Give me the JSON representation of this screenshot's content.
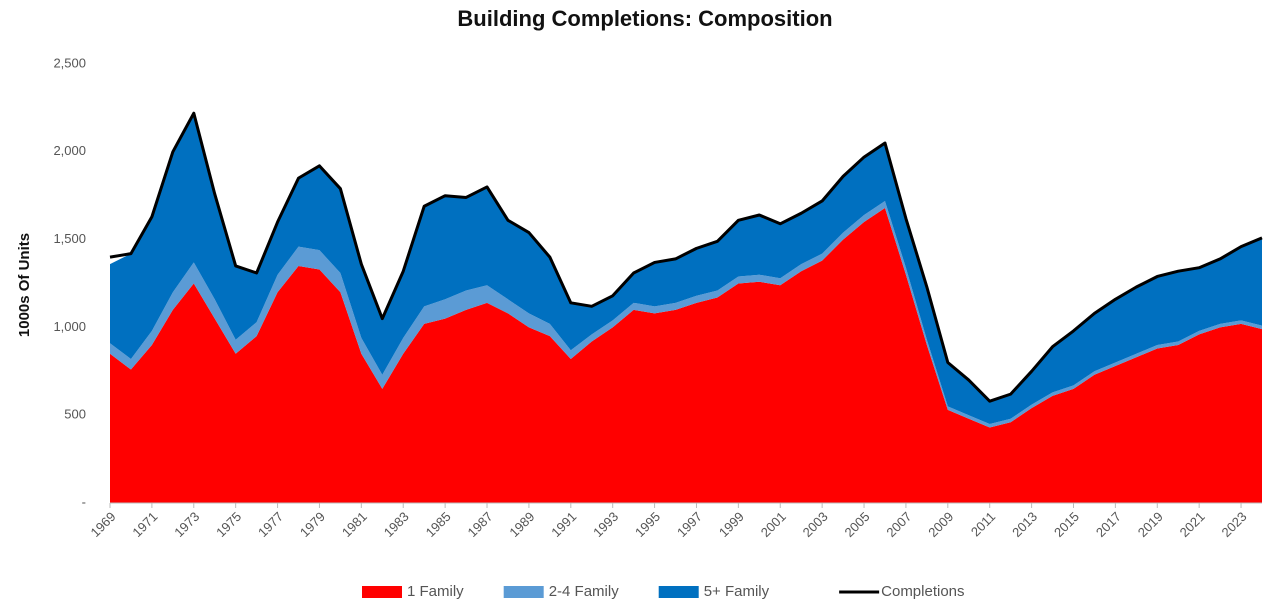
{
  "chart_data": {
    "type": "stacked_area",
    "title": "Building Completions: Composition",
    "ylabel": "1000s Of Units",
    "x": [
      1969,
      1970,
      1971,
      1972,
      1973,
      1974,
      1975,
      1976,
      1977,
      1978,
      1979,
      1980,
      1981,
      1982,
      1983,
      1984,
      1985,
      1986,
      1987,
      1988,
      1989,
      1990,
      1991,
      1992,
      1993,
      1994,
      1995,
      1996,
      1997,
      1998,
      1999,
      2000,
      2001,
      2002,
      2003,
      2004,
      2005,
      2006,
      2007,
      2008,
      2009,
      2010,
      2011,
      2012,
      2013,
      2014,
      2015,
      2016,
      2017,
      2018,
      2019,
      2020,
      2021,
      2022,
      2023,
      2024
    ],
    "series": [
      {
        "name": "1 Family",
        "color": "#ff0000",
        "values": [
          850,
          760,
          900,
          1100,
          1250,
          1050,
          850,
          950,
          1200,
          1350,
          1330,
          1200,
          850,
          650,
          850,
          1020,
          1050,
          1100,
          1140,
          1080,
          1000,
          950,
          820,
          920,
          1000,
          1100,
          1080,
          1100,
          1140,
          1170,
          1250,
          1260,
          1240,
          1320,
          1380,
          1500,
          1600,
          1680,
          1300,
          900,
          530,
          480,
          430,
          460,
          540,
          610,
          650,
          730,
          780,
          830,
          880,
          900,
          960,
          1000,
          1020,
          990
        ]
      },
      {
        "name": "2-4 Family",
        "color": "#5b9bd5",
        "values": [
          60,
          60,
          80,
          100,
          120,
          110,
          80,
          80,
          100,
          110,
          110,
          110,
          90,
          80,
          90,
          100,
          110,
          110,
          100,
          80,
          80,
          70,
          50,
          40,
          40,
          40,
          40,
          40,
          40,
          40,
          40,
          40,
          40,
          40,
          40,
          40,
          40,
          40,
          40,
          30,
          20,
          20,
          20,
          20,
          20,
          20,
          20,
          20,
          20,
          20,
          20,
          20,
          20,
          20,
          20,
          20
        ]
      },
      {
        "name": "5+ Family",
        "color": "#0070c0",
        "values": [
          450,
          600,
          650,
          800,
          850,
          600,
          420,
          280,
          300,
          390,
          480,
          480,
          420,
          320,
          380,
          570,
          590,
          530,
          560,
          450,
          460,
          380,
          270,
          160,
          140,
          170,
          250,
          250,
          270,
          280,
          320,
          340,
          310,
          290,
          300,
          320,
          330,
          330,
          280,
          300,
          250,
          200,
          130,
          140,
          190,
          260,
          310,
          330,
          360,
          380,
          390,
          400,
          360,
          370,
          420,
          500
        ]
      },
      {
        "name": "Completions",
        "color": "#000000",
        "kind": "line",
        "values": [
          1400,
          1420,
          1630,
          2000,
          2220,
          1760,
          1350,
          1310,
          1600,
          1850,
          1920,
          1790,
          1360,
          1050,
          1320,
          1690,
          1750,
          1740,
          1800,
          1610,
          1540,
          1400,
          1140,
          1120,
          1180,
          1310,
          1370,
          1390,
          1450,
          1490,
          1610,
          1640,
          1590,
          1650,
          1720,
          1860,
          1970,
          2050,
          1620,
          1230,
          800,
          700,
          580,
          620,
          750,
          890,
          980,
          1080,
          1160,
          1230,
          1290,
          1320,
          1340,
          1390,
          1460,
          1510
        ]
      }
    ],
    "xlim": [
      1969,
      2024
    ],
    "xticks": [
      1969,
      1971,
      1973,
      1975,
      1977,
      1979,
      1981,
      1983,
      1985,
      1987,
      1989,
      1991,
      1993,
      1995,
      1997,
      1999,
      2001,
      2003,
      2005,
      2007,
      2009,
      2011,
      2013,
      2015,
      2017,
      2019,
      2021,
      2023
    ],
    "ylim": [
      0,
      2500
    ],
    "yticks": [
      {
        "value": 0,
        "label": "-"
      },
      500,
      {
        "value": 1000,
        "label": "1,000"
      },
      {
        "value": 1500,
        "label": "1,500"
      },
      {
        "value": 2000,
        "label": "2,000"
      },
      {
        "value": 2500,
        "label": "2,500"
      }
    ],
    "grid": false,
    "legend": "bottom"
  }
}
